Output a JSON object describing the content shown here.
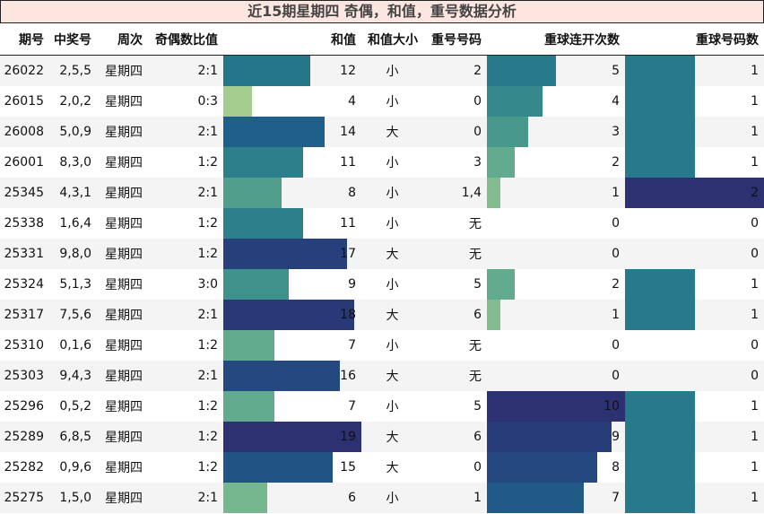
{
  "title": "近15期星期四 奇偶，和值，重号数据分析",
  "colormap": [
    "#a5cd90",
    "#6cb28f",
    "#3f918b",
    "#277a8b",
    "#1f5f89",
    "#25447e",
    "#2c3172"
  ],
  "chart_data": {
    "type": "table",
    "columns": [
      "期号",
      "中奖号",
      "周次",
      "奇偶数比值",
      "和值",
      "和值大小",
      "重号号码",
      "重球连开次数",
      "重球号码数"
    ],
    "bar_columns": [
      "和值",
      "重球连开次数",
      "重球号码数"
    ],
    "rows": [
      [
        "26022",
        "2,5,5",
        "星期四",
        "2:1",
        12,
        "小",
        "2",
        5,
        1
      ],
      [
        "26015",
        "2,0,2",
        "星期四",
        "0:3",
        4,
        "小",
        "0",
        4,
        1
      ],
      [
        "26008",
        "5,0,9",
        "星期四",
        "2:1",
        14,
        "大",
        "0",
        3,
        1
      ],
      [
        "26001",
        "8,3,0",
        "星期四",
        "1:2",
        11,
        "小",
        "3",
        2,
        1
      ],
      [
        "25345",
        "4,3,1",
        "星期四",
        "2:1",
        8,
        "小",
        "1,4",
        1,
        2
      ],
      [
        "25338",
        "1,6,4",
        "星期四",
        "1:2",
        11,
        "小",
        "无",
        0,
        0
      ],
      [
        "25331",
        "9,8,0",
        "星期四",
        "1:2",
        17,
        "大",
        "无",
        0,
        0
      ],
      [
        "25324",
        "5,1,3",
        "星期四",
        "3:0",
        9,
        "小",
        "5",
        2,
        1
      ],
      [
        "25317",
        "7,5,6",
        "星期四",
        "2:1",
        18,
        "大",
        "6",
        1,
        1
      ],
      [
        "25310",
        "0,1,6",
        "星期四",
        "1:2",
        7,
        "小",
        "无",
        0,
        0
      ],
      [
        "25303",
        "9,4,3",
        "星期四",
        "2:1",
        16,
        "大",
        "无",
        0,
        0
      ],
      [
        "25296",
        "0,5,2",
        "星期四",
        "1:2",
        7,
        "小",
        "5",
        10,
        1
      ],
      [
        "25289",
        "6,8,5",
        "星期四",
        "1:2",
        19,
        "大",
        "6",
        9,
        1
      ],
      [
        "25282",
        "0,9,6",
        "星期四",
        "1:2",
        15,
        "大",
        "0",
        8,
        1
      ],
      [
        "25275",
        "1,5,0",
        "星期四",
        "2:1",
        6,
        "小",
        "1",
        7,
        1
      ]
    ]
  }
}
